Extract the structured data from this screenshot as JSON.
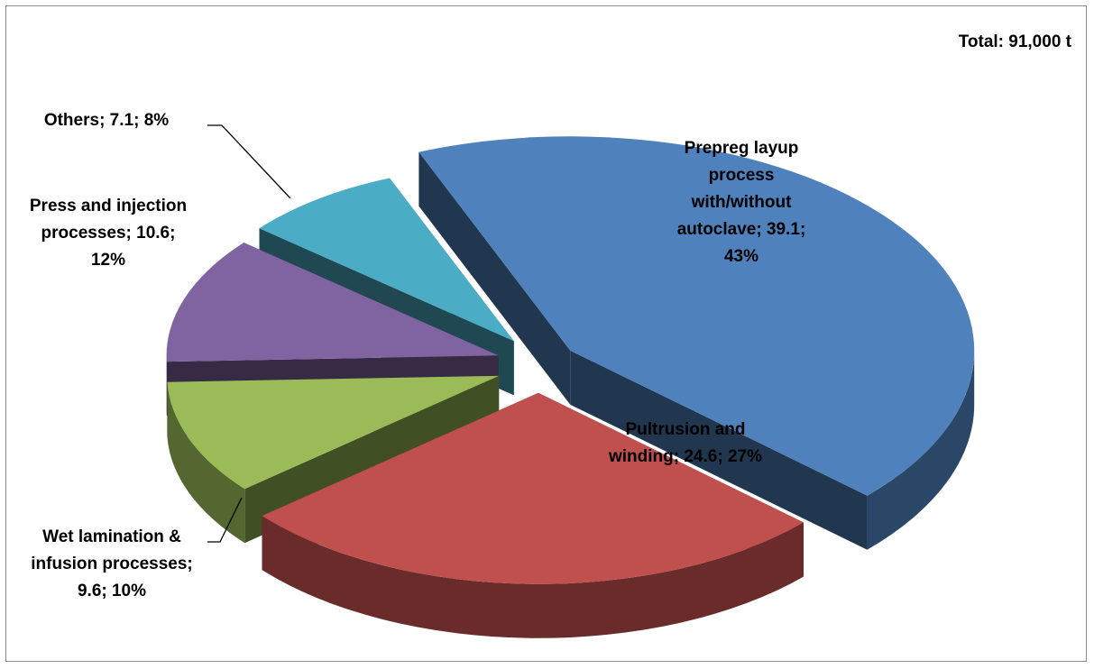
{
  "chart_data": {
    "type": "pie",
    "annotation": "Total: 91,000 t",
    "slices": [
      {
        "name": "Prepreg layup process with/without autoclave",
        "value": 39.1,
        "percent": 43,
        "color": "#4f81bd",
        "label_lines": [
          "Prepreg layup",
          "process",
          "with/without",
          "autoclave; 39.1;",
          "43%"
        ]
      },
      {
        "name": "Pultrusion and winding",
        "value": 24.6,
        "percent": 27,
        "color": "#c0504d",
        "label_lines": [
          "Pultrusion and",
          "winding; 24.6; 27%"
        ]
      },
      {
        "name": "Wet lamination & infusion processes",
        "value": 9.6,
        "percent": 10,
        "color": "#9bbb59",
        "label_lines": [
          "Wet lamination &",
          "infusion processes;",
          "9.6; 10%"
        ]
      },
      {
        "name": "Press and injection processes",
        "value": 10.6,
        "percent": 12,
        "color": "#8064a2",
        "label_lines": [
          "Press and injection",
          "processes; 10.6;",
          "12%"
        ]
      },
      {
        "name": "Others",
        "value": 7.1,
        "percent": 8,
        "color": "#4bacc6",
        "label_lines": [
          "Others; 7.1; 8%"
        ]
      }
    ],
    "exploded": true,
    "three_d": true
  }
}
